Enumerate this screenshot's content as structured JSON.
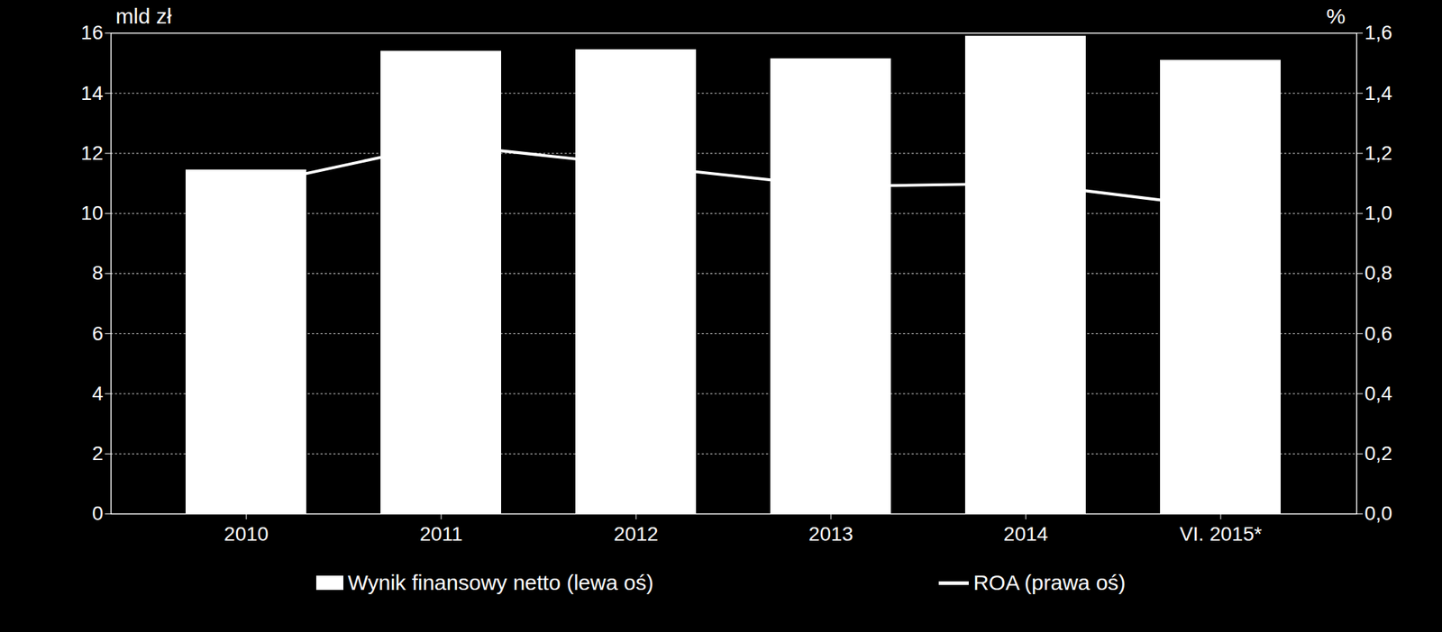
{
  "chart_data": {
    "type": "bar",
    "categories": [
      "2010",
      "2011",
      "2012",
      "2013",
      "2014",
      "VI. 2015*"
    ],
    "y_label": "mld zł",
    "y2_label": "%",
    "series": [
      {
        "name": "Wynik finansowy netto (lewa oś)",
        "type": "bar",
        "color": "#ffffff",
        "values": [
          11.45,
          15.4,
          15.45,
          15.15,
          15.9,
          15.1
        ]
      },
      {
        "name": "ROA (prawa oś)",
        "type": "line",
        "axis": "y2",
        "color": "#ffffff",
        "values": [
          1.09,
          1.23,
          1.16,
          1.09,
          1.1,
          1.02
        ]
      }
    ],
    "ylim": [
      0,
      16
    ],
    "yticks": [
      0,
      2,
      4,
      6,
      8,
      10,
      12,
      14,
      16
    ],
    "y2lim": [
      0,
      1.6
    ],
    "y2ticks": [
      {
        "value": 0,
        "label": "0,0"
      },
      {
        "value": 0.2,
        "label": "0,2"
      },
      {
        "value": 0.4,
        "label": "0,4"
      },
      {
        "value": 0.6,
        "label": "0,6"
      },
      {
        "value": 0.8,
        "label": "0,8"
      },
      {
        "value": 1,
        "label": "1,0"
      },
      {
        "value": 1.2,
        "label": "1,2"
      },
      {
        "value": 1.4,
        "label": "1,4"
      },
      {
        "value": 1.6,
        "label": "1,6"
      }
    ],
    "grid": true,
    "legend": "bottom"
  }
}
